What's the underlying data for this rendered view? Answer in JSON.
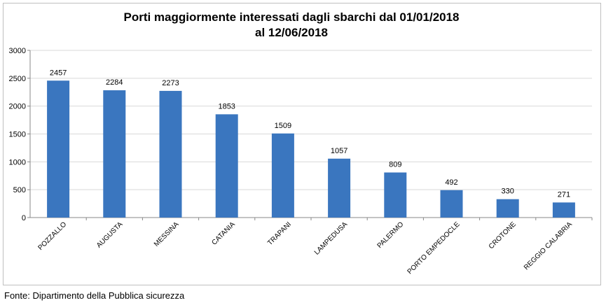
{
  "chart_data": {
    "type": "bar",
    "title_lines": [
      "Porti maggiormente interessati dagli sbarchi dal 01/01/2018",
      "al 12/06/2018"
    ],
    "categories": [
      "POZZALLO",
      "AUGUSTA",
      "MESSINA",
      "CATANIA",
      "TRAPANI",
      "LAMPEDUSA",
      "PALERMO",
      "PORTO EMPEDOCLE",
      "CROTONE",
      "REGGIO CALABRIA"
    ],
    "values": [
      2457,
      2284,
      2273,
      1853,
      1509,
      1057,
      809,
      492,
      330,
      271
    ],
    "data_labels": [
      "2457",
      "2284",
      "2273",
      "1853",
      "1509",
      "1057",
      "809",
      "492",
      "330",
      "271"
    ],
    "y_ticks": [
      0,
      500,
      1000,
      1500,
      2000,
      2500,
      3000
    ],
    "y_tick_labels": [
      "0",
      "500",
      "1000",
      "1500",
      "2000",
      "2500",
      "3000"
    ],
    "ylim": [
      0,
      3000
    ],
    "bar_color": "#3a76bf",
    "grid": true,
    "legend": "none"
  },
  "source_note": "Fonte: Dipartimento della Pubblica sicurezza"
}
